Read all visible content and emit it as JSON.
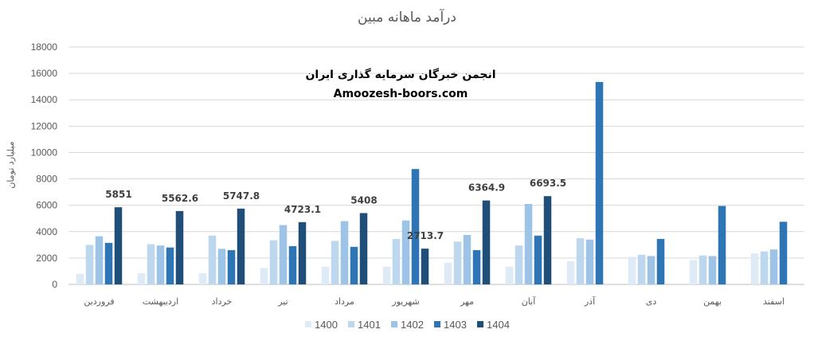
{
  "watermark": {
    "line1": "انجمن خبرگان سرمایه گذاری ایران",
    "line2": "Amoozesh-boors.com"
  },
  "chart_data": {
    "type": "bar",
    "title": "درآمد ماهانه مبین",
    "xlabel": "",
    "ylabel": "میلیارد تومان",
    "ylim": [
      0,
      18000
    ],
    "yticks": [
      0,
      2000,
      4000,
      6000,
      8000,
      10000,
      12000,
      14000,
      16000,
      18000
    ],
    "grid": true,
    "legend_position": "bottom",
    "categories": [
      "فروردین",
      "اردیبهشت",
      "خرداد",
      "تیر",
      "مرداد",
      "شهریور",
      "مهر",
      "آبان",
      "آذر",
      "دی",
      "بهمن",
      "اسفند"
    ],
    "series": [
      {
        "name": "1400",
        "color": "#deebf7",
        "values": [
          800,
          850,
          850,
          1250,
          1350,
          1350,
          1650,
          1350,
          1750,
          2100,
          1850,
          2350
        ]
      },
      {
        "name": "1401",
        "color": "#bdd7ee",
        "values": [
          3000,
          3050,
          3700,
          3350,
          3300,
          3450,
          3250,
          2950,
          3500,
          2250,
          2200,
          2500
        ]
      },
      {
        "name": "1402",
        "color": "#9dc3e6",
        "values": [
          3650,
          2950,
          2700,
          4500,
          4800,
          4850,
          3750,
          6100,
          3400,
          2150,
          2150,
          2650
        ]
      },
      {
        "name": "1403",
        "color": "#2e75b6",
        "values": [
          3150,
          2800,
          2600,
          2900,
          2850,
          8750,
          2600,
          3700,
          15350,
          3450,
          5950,
          4750
        ]
      },
      {
        "name": "1404",
        "color": "#1f4e79",
        "values": [
          5851,
          5562.6,
          5747.8,
          4723.1,
          5408,
          2713.7,
          6364.9,
          6693.5,
          null,
          null,
          null,
          null
        ]
      }
    ],
    "data_labels": {
      "series": "1404",
      "values": [
        "5851",
        "5562.6",
        "5747.8",
        "4723.1",
        "5408",
        "2713.7",
        "6364.9",
        "6693.5"
      ]
    }
  }
}
